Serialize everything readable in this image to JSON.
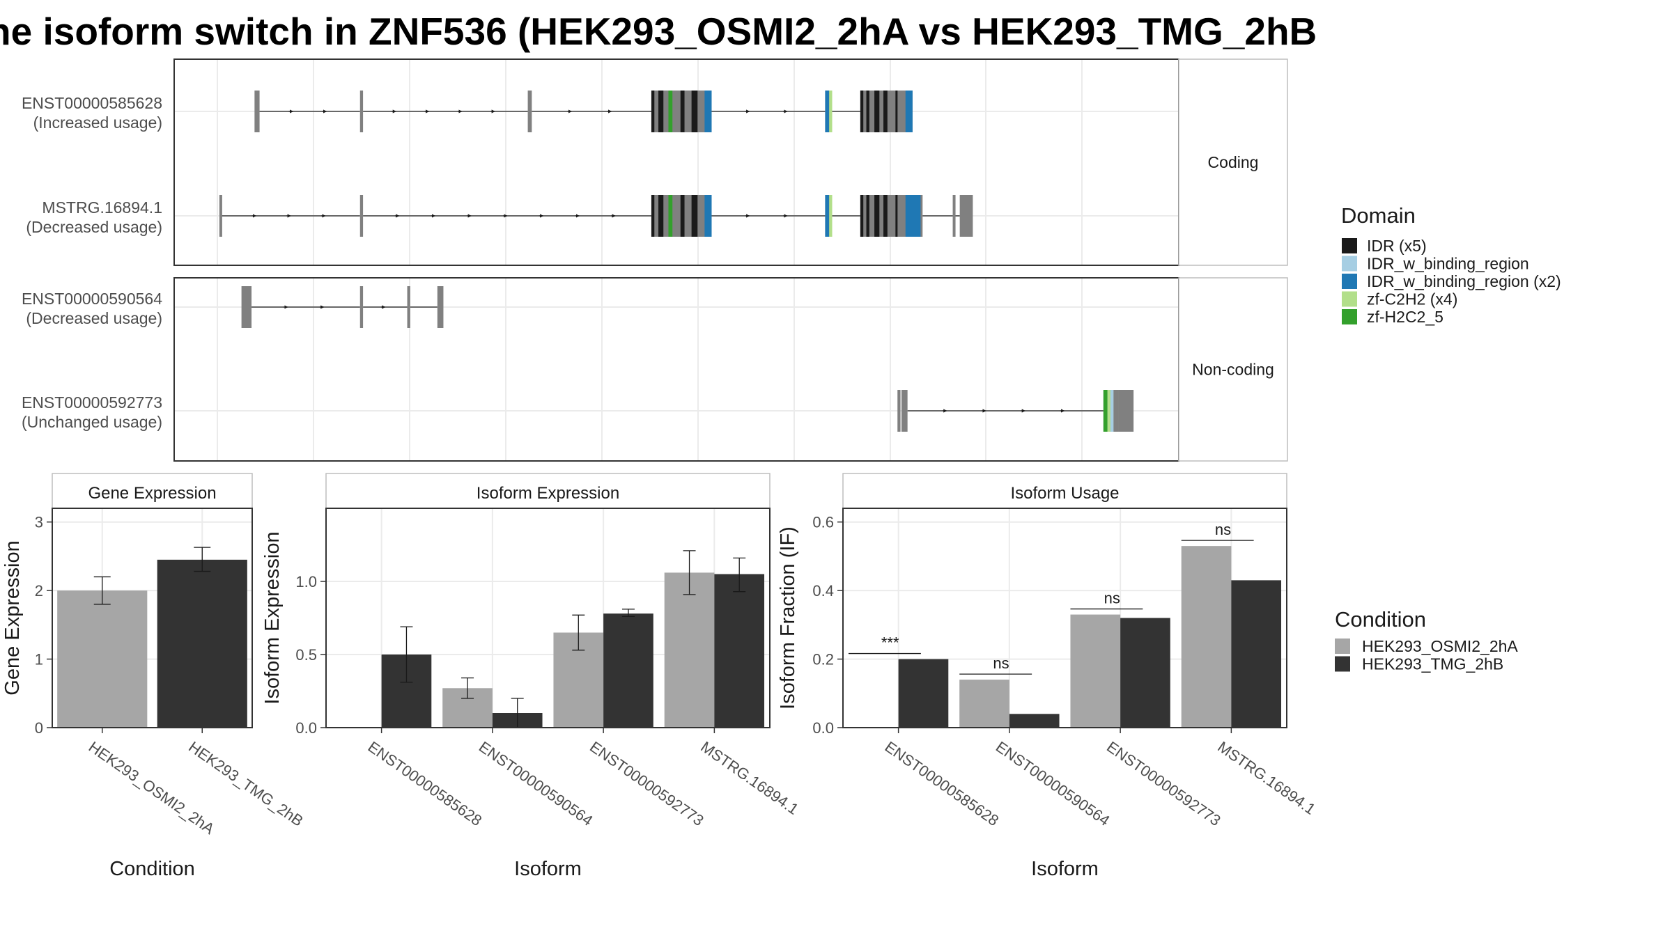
{
  "title": "he isoform switch in ZNF536 (HEK293_OSMI2_2hA vs HEK293_TMG_2hB",
  "colors": {
    "IDR": "#1a1a1a",
    "IDR_w_binding_region": "#a6cee3",
    "IDR_w_binding_region_x2": "#1f78b4",
    "zf_C2H2": "#b2df8a",
    "zf_H2C2_5": "#33a02c",
    "exon": "#808080",
    "condition_a": "#a6a6a6",
    "condition_b": "#333333"
  },
  "chart_data": [
    {
      "type": "other",
      "description_of": "isoform structure track",
      "panels": [
        {
          "label": "Coding",
          "isoforms": [
            {
              "id": "ENST00000585628",
              "usage": "(Increased usage)",
              "exons": [
                [
                  0.08,
                  0.085
                ],
                [
                  0.185,
                  0.188
                ],
                [
                  0.352,
                  0.356
                ],
                [
                  0.475,
                  0.535
                ],
                [
                  0.648,
                  0.655
                ],
                [
                  0.683,
                  0.735
                ]
              ],
              "domains": [
                {
                  "type": "IDR_x5",
                  "region": [
                    0.475,
                    0.478
                  ]
                },
                {
                  "type": "IDR_x5",
                  "region": [
                    0.482,
                    0.487
                  ]
                },
                {
                  "type": "zf-H2C2_5",
                  "region": [
                    0.492,
                    0.496
                  ]
                },
                {
                  "type": "IDR_x5",
                  "region": [
                    0.504,
                    0.508
                  ]
                },
                {
                  "type": "IDR_x5",
                  "region": [
                    0.515,
                    0.521
                  ]
                },
                {
                  "type": "IDR_w_binding_region_x2",
                  "region": [
                    0.528,
                    0.535
                  ]
                },
                {
                  "type": "IDR_w_binding_region_x2",
                  "region": [
                    0.648,
                    0.652
                  ]
                },
                {
                  "type": "zf-C2H2_x4",
                  "region": [
                    0.652,
                    0.655
                  ]
                },
                {
                  "type": "IDR_x5",
                  "region": [
                    0.683,
                    0.686
                  ]
                },
                {
                  "type": "IDR_x5",
                  "region": [
                    0.689,
                    0.692
                  ]
                },
                {
                  "type": "IDR_x5",
                  "region": [
                    0.697,
                    0.702
                  ]
                },
                {
                  "type": "IDR_x5",
                  "region": [
                    0.706,
                    0.71
                  ]
                },
                {
                  "type": "IDR_x5",
                  "region": [
                    0.718,
                    0.72
                  ]
                },
                {
                  "type": "IDR_w_binding_region_x2",
                  "region": [
                    0.728,
                    0.735
                  ]
                }
              ]
            },
            {
              "id": "MSTRG.16894.1",
              "usage": "(Decreased usage)",
              "exons": [
                [
                  0.045,
                  0.047
                ],
                [
                  0.185,
                  0.188
                ],
                [
                  0.475,
                  0.535
                ],
                [
                  0.648,
                  0.655
                ],
                [
                  0.683,
                  0.745
                ],
                [
                  0.775,
                  0.777
                ],
                [
                  0.782,
                  0.795
                ]
              ],
              "domains": [
                {
                  "type": "IDR_x5",
                  "region": [
                    0.475,
                    0.478
                  ]
                },
                {
                  "type": "IDR_x5",
                  "region": [
                    0.482,
                    0.487
                  ]
                },
                {
                  "type": "zf-H2C2_5",
                  "region": [
                    0.492,
                    0.496
                  ]
                },
                {
                  "type": "IDR_x5",
                  "region": [
                    0.504,
                    0.508
                  ]
                },
                {
                  "type": "IDR_x5",
                  "region": [
                    0.515,
                    0.521
                  ]
                },
                {
                  "type": "IDR_w_binding_region_x2",
                  "region": [
                    0.528,
                    0.535
                  ]
                },
                {
                  "type": "IDR_w_binding_region_x2",
                  "region": [
                    0.648,
                    0.652
                  ]
                },
                {
                  "type": "zf-C2H2_x4",
                  "region": [
                    0.652,
                    0.655
                  ]
                },
                {
                  "type": "IDR_x5",
                  "region": [
                    0.683,
                    0.686
                  ]
                },
                {
                  "type": "IDR_x5",
                  "region": [
                    0.689,
                    0.692
                  ]
                },
                {
                  "type": "IDR_x5",
                  "region": [
                    0.697,
                    0.702
                  ]
                },
                {
                  "type": "IDR_x5",
                  "region": [
                    0.706,
                    0.71
                  ]
                },
                {
                  "type": "IDR_x5",
                  "region": [
                    0.718,
                    0.72
                  ]
                },
                {
                  "type": "IDR_w_binding_region_x2",
                  "region": [
                    0.728,
                    0.743
                  ]
                }
              ]
            }
          ]
        },
        {
          "label": "Non-coding",
          "isoforms": [
            {
              "id": "ENST00000590564",
              "usage": "(Decreased usage)",
              "exons": [
                [
                  0.067,
                  0.077
                ],
                [
                  0.185,
                  0.188
                ],
                [
                  0.232,
                  0.235
                ],
                [
                  0.262,
                  0.268
                ]
              ],
              "domains": []
            },
            {
              "id": "ENST00000592773",
              "usage": "(Unchanged usage)",
              "exons": [
                [
                  0.72,
                  0.723
                ],
                [
                  0.724,
                  0.73
                ],
                [
                  0.925,
                  0.935
                ],
                [
                  0.935,
                  0.94
                ],
                [
                  0.94,
                  0.955
                ]
              ],
              "domains": [
                {
                  "type": "zf-H2C2_5",
                  "region": [
                    0.925,
                    0.929
                  ]
                },
                {
                  "type": "zf-C2H2_x4",
                  "region": [
                    0.929,
                    0.932
                  ]
                },
                {
                  "type": "IDR_w_binding_region",
                  "region": [
                    0.932,
                    0.935
                  ]
                }
              ]
            }
          ]
        }
      ],
      "legend": {
        "title": "Domain",
        "entries": [
          "IDR (x5)",
          "IDR_w_binding_region",
          "IDR_w_binding_region (x2)",
          "zf-C2H2 (x4)",
          "zf-H2C2_5"
        ]
      }
    },
    {
      "type": "bar",
      "title": "Gene Expression",
      "xlabel": "Condition",
      "ylabel": "Gene Expression",
      "ylim": [
        0,
        3.2
      ],
      "yticks": [
        "0",
        "1",
        "2",
        "3"
      ],
      "categories": [
        "HEK293_OSMI2_2hA",
        "HEK293_TMG_2hB"
      ],
      "values": [
        2.0,
        2.45
      ],
      "errors": [
        [
          1.8,
          2.2
        ],
        [
          2.28,
          2.63
        ]
      ]
    },
    {
      "type": "bar",
      "title": "Isoform Expression",
      "xlabel": "Isoform",
      "ylabel": "Isoform Expression",
      "ylim": [
        0,
        1.5
      ],
      "yticks": [
        "0.0",
        "0.5",
        "1.0"
      ],
      "categories": [
        "ENST00000585628",
        "ENST00000590564",
        "ENST00000592773",
        "MSTRG.16894.1"
      ],
      "series": [
        {
          "name": "HEK293_OSMI2_2hA",
          "values": [
            0.0,
            0.27,
            0.65,
            1.06
          ],
          "errors": [
            [
              0.0,
              0.0
            ],
            [
              0.2,
              0.34
            ],
            [
              0.53,
              0.77
            ],
            [
              0.91,
              1.21
            ]
          ]
        },
        {
          "name": "HEK293_TMG_2hB",
          "values": [
            0.5,
            0.1,
            0.78,
            1.05
          ],
          "errors": [
            [
              0.31,
              0.69
            ],
            [
              0.0,
              0.2
            ],
            [
              0.76,
              0.81
            ],
            [
              0.93,
              1.16
            ]
          ]
        }
      ]
    },
    {
      "type": "bar",
      "title": "Isoform Usage",
      "xlabel": "Isoform",
      "ylabel": "Isoform Fraction (IF)",
      "ylim": [
        0,
        0.64
      ],
      "yticks": [
        "0.0",
        "0.2",
        "0.4",
        "0.6"
      ],
      "categories": [
        "ENST00000585628",
        "ENST00000590564",
        "ENST00000592773",
        "MSTRG.16894.1"
      ],
      "series": [
        {
          "name": "HEK293_OSMI2_2hA",
          "values": [
            0.0,
            0.14,
            0.33,
            0.53
          ]
        },
        {
          "name": "HEK293_TMG_2hB",
          "values": [
            0.2,
            0.04,
            0.32,
            0.43
          ]
        }
      ],
      "significance": [
        "***",
        "ns",
        "ns",
        "ns"
      ]
    }
  ],
  "condition_legend": {
    "title": "Condition",
    "entries": [
      "HEK293_OSMI2_2hA",
      "HEK293_TMG_2hB"
    ]
  }
}
